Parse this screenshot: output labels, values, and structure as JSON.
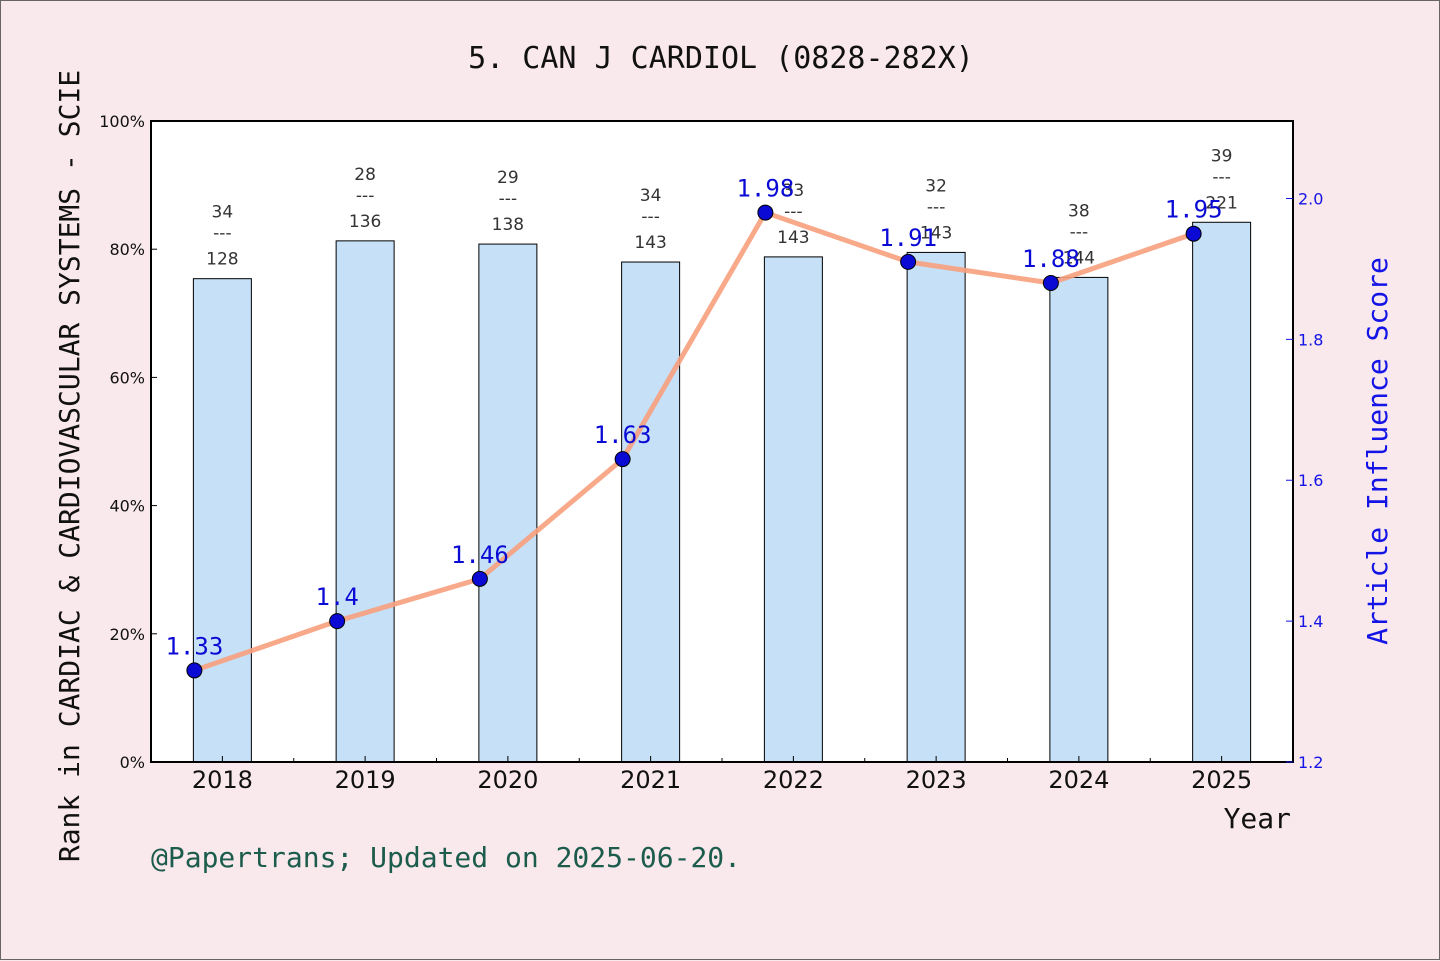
{
  "chart_data": {
    "type": "bar+line",
    "title": "5. CAN J CARDIOL (0828-282X)",
    "ylabel": "Rank in CARDIAC & CARDIOVASCULAR SYSTEMS - SCIE",
    "y2label": "Article Influence Score",
    "xlabel": "Year",
    "categories": [
      "2018",
      "2019",
      "2020",
      "2021",
      "2022",
      "2023",
      "2024",
      "2025"
    ],
    "bars": {
      "rank": [
        "34",
        "28",
        "29",
        "34",
        "33",
        "32",
        "38",
        "39"
      ],
      "total": [
        "128",
        "136",
        "138",
        "143",
        "143",
        "143",
        "144",
        "221"
      ],
      "separator": "---",
      "values_pct": [
        75.4,
        81.3,
        80.8,
        78.0,
        78.8,
        79.5,
        75.6,
        84.2
      ],
      "color": "#c5e0f7"
    },
    "line": {
      "values": [
        1.33,
        1.4,
        1.46,
        1.63,
        1.98,
        1.91,
        1.88,
        1.95
      ],
      "labels": [
        "1.33",
        "1.4",
        "1.46",
        "1.63",
        "1.98",
        "1.91",
        "1.88",
        "1.95"
      ],
      "color": "#f7a07c",
      "marker_color": "#0a0ad4"
    },
    "ylim": [
      0,
      100
    ],
    "yticks": [
      "0%",
      "20%",
      "40%",
      "60%",
      "80%",
      "100%"
    ],
    "y2lim": [
      1.2,
      2.11
    ],
    "y2ticks": [
      "1.2",
      "1.4",
      "1.6",
      "1.8",
      "2.0"
    ]
  },
  "credit": "@Papertrans; Updated on 2025-06-20."
}
